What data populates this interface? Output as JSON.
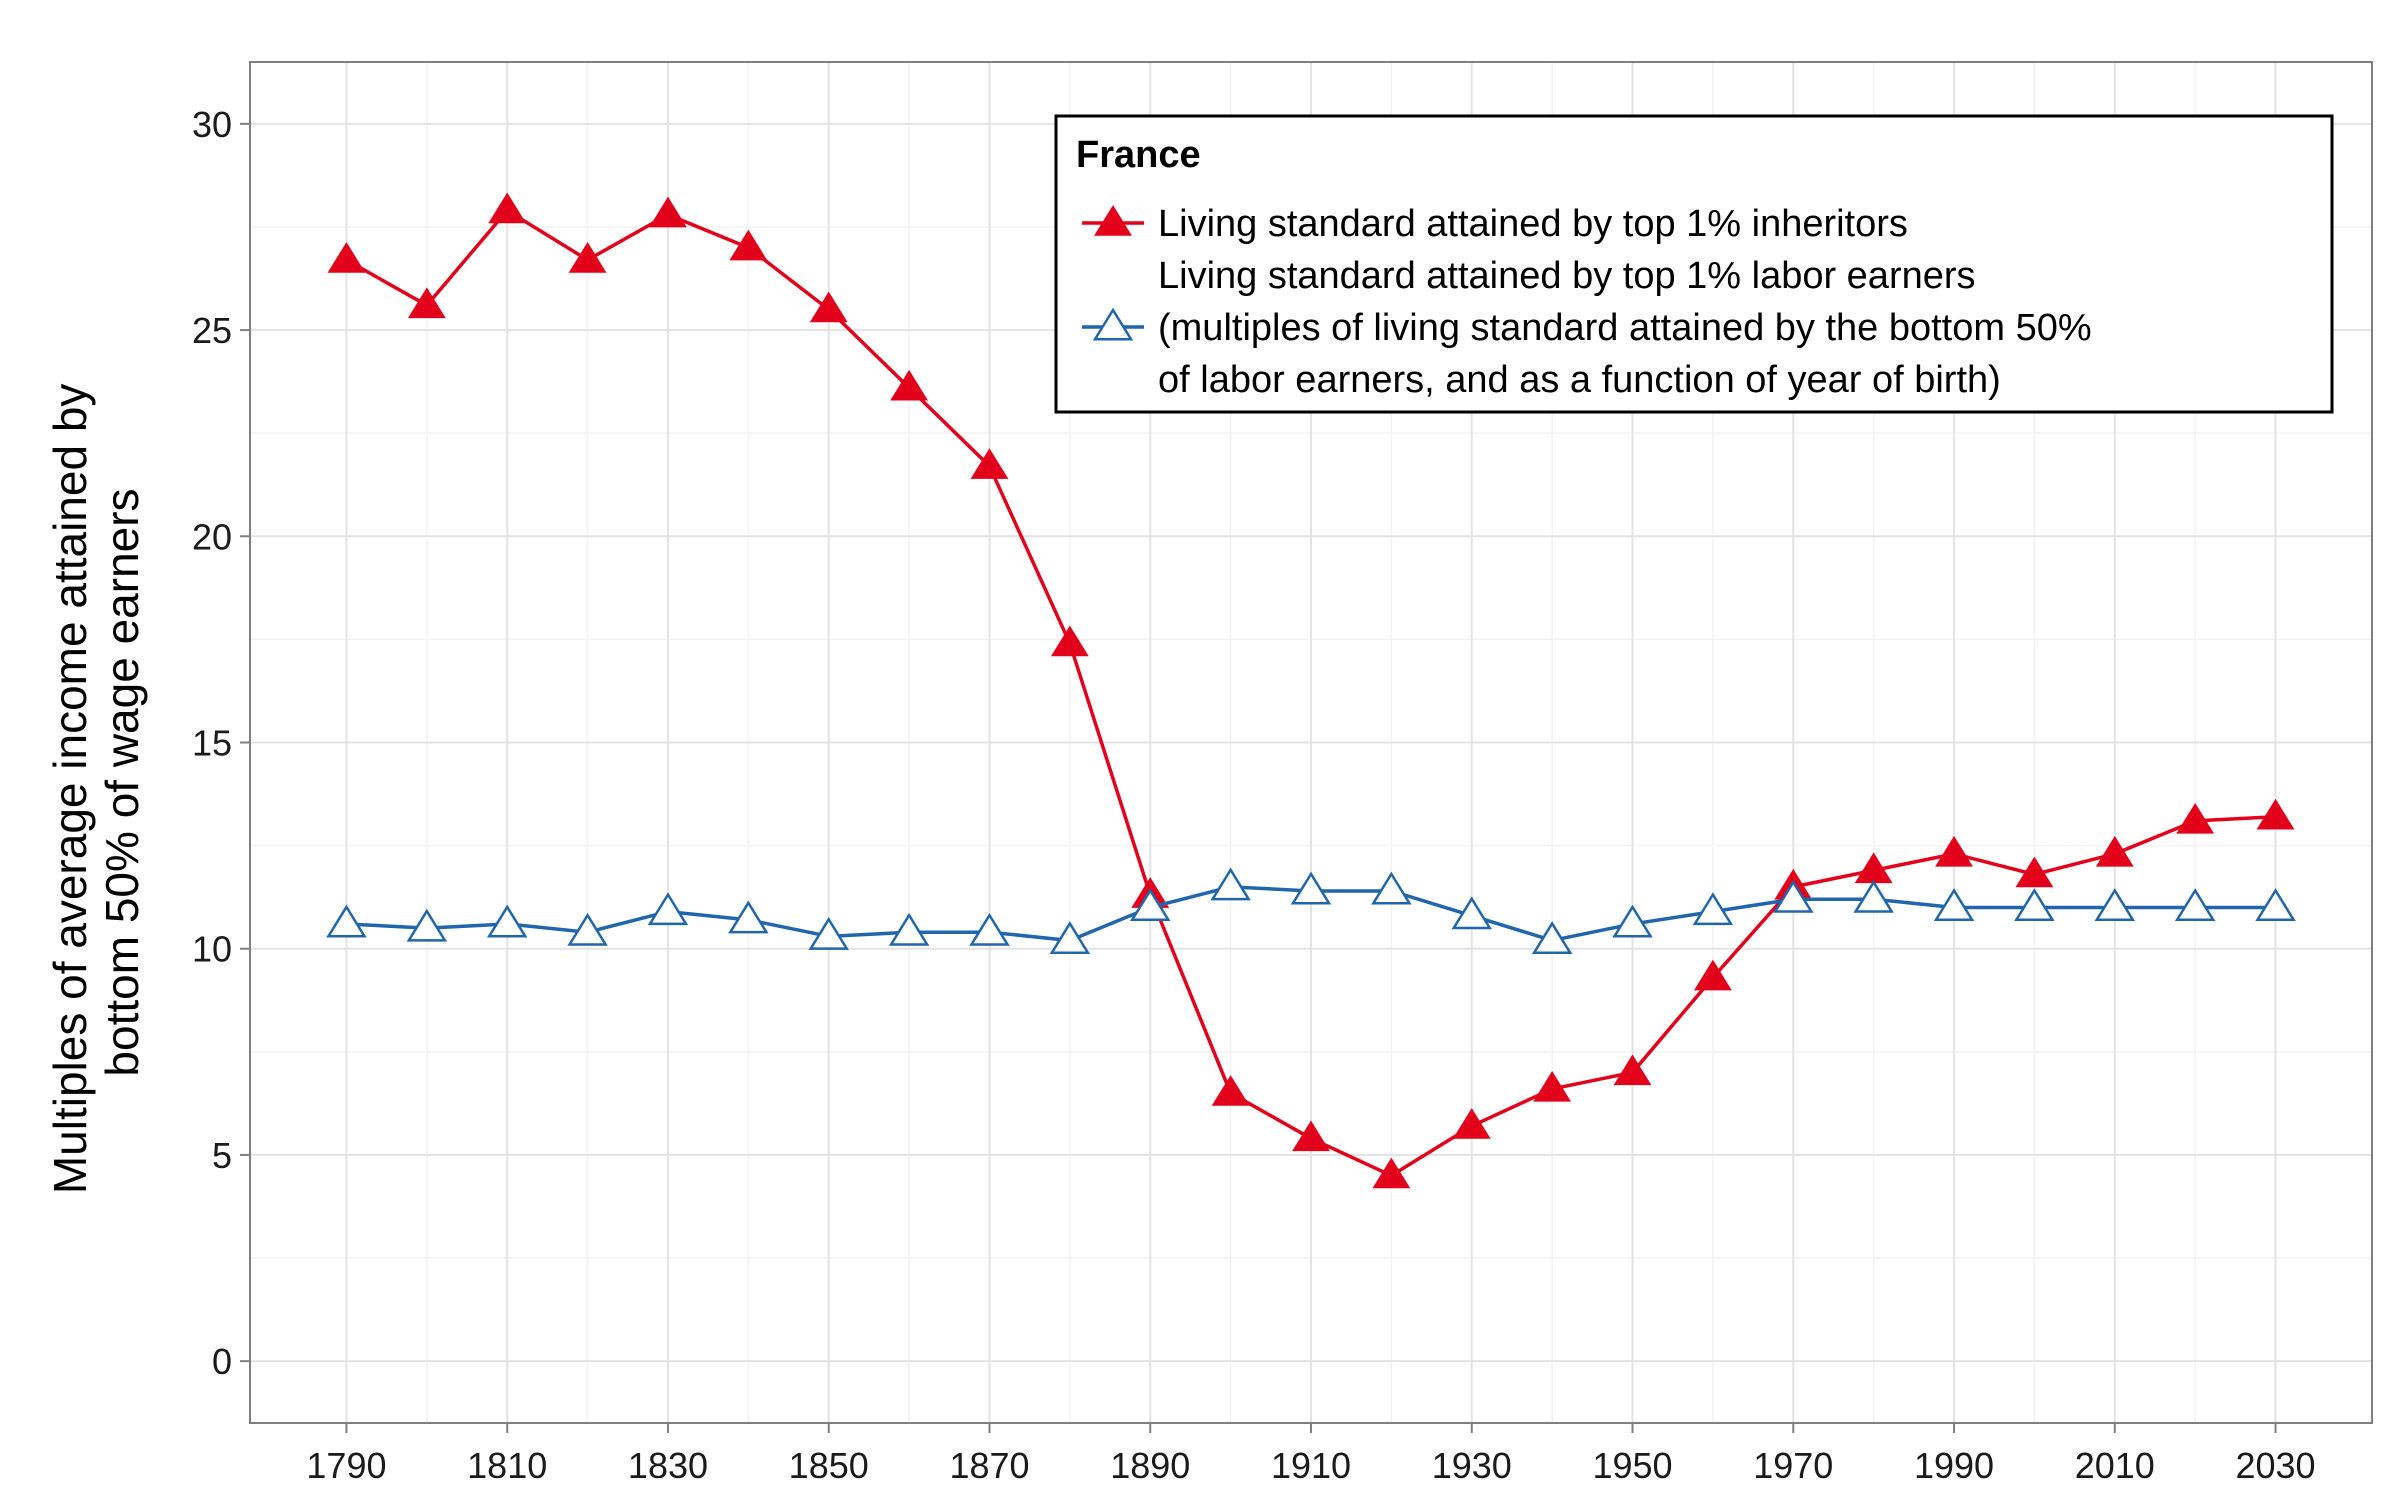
{
  "chart_data": {
    "type": "line",
    "title": "",
    "xlabel": "",
    "ylabel": "Multiples of average income attained by bottom 50% of wage earners",
    "ylabel_lines": [
      "Multiples of average income attained by",
      "bottom 50% of wage earners"
    ],
    "xlim": [
      1778,
      2042
    ],
    "ylim": [
      -1.5,
      31.5
    ],
    "x_ticks": [
      1790,
      1810,
      1830,
      1850,
      1870,
      1890,
      1910,
      1930,
      1950,
      1970,
      1990,
      2010,
      2030
    ],
    "y_ticks": [
      0,
      5,
      10,
      15,
      20,
      25,
      30
    ],
    "grid": true,
    "legend": {
      "placement": "top-right",
      "title": "France",
      "entries": [
        {
          "series": 0,
          "lines": [
            "Living standard attained by top 1% inheritors"
          ]
        },
        {
          "series": 1,
          "lines": [
            "Living standard attained by top 1% labor earners",
            "(multiples of living standard attained by the bottom 50%",
            "of labor earners, and as a function of year of birth)"
          ]
        }
      ]
    },
    "x": [
      1790,
      1800,
      1810,
      1820,
      1830,
      1840,
      1850,
      1860,
      1870,
      1880,
      1890,
      1900,
      1910,
      1920,
      1930,
      1940,
      1950,
      1960,
      1970,
      1980,
      1990,
      2000,
      2010,
      2020,
      2030
    ],
    "series": [
      {
        "name": "Living standard attained by top 1% inheritors",
        "color": "#e3001b",
        "marker": "filled-triangle",
        "values": [
          26.7,
          25.6,
          27.9,
          26.7,
          27.8,
          27.0,
          25.5,
          23.6,
          21.7,
          17.4,
          11.3,
          6.5,
          5.4,
          4.5,
          5.7,
          6.6,
          7.0,
          9.3,
          11.5,
          11.9,
          12.3,
          11.8,
          12.3,
          13.1,
          13.2
        ]
      },
      {
        "name": "Living standard attained by top 1% labor earners",
        "color": "#2166ac",
        "marker": "open-triangle",
        "values": [
          10.6,
          10.5,
          10.6,
          10.4,
          10.9,
          10.7,
          10.3,
          10.4,
          10.4,
          10.2,
          11.0,
          11.5,
          11.4,
          11.4,
          10.8,
          10.2,
          10.6,
          10.9,
          11.2,
          11.2,
          11.0,
          11.0,
          11.0,
          11.0,
          11.0
        ]
      }
    ]
  }
}
